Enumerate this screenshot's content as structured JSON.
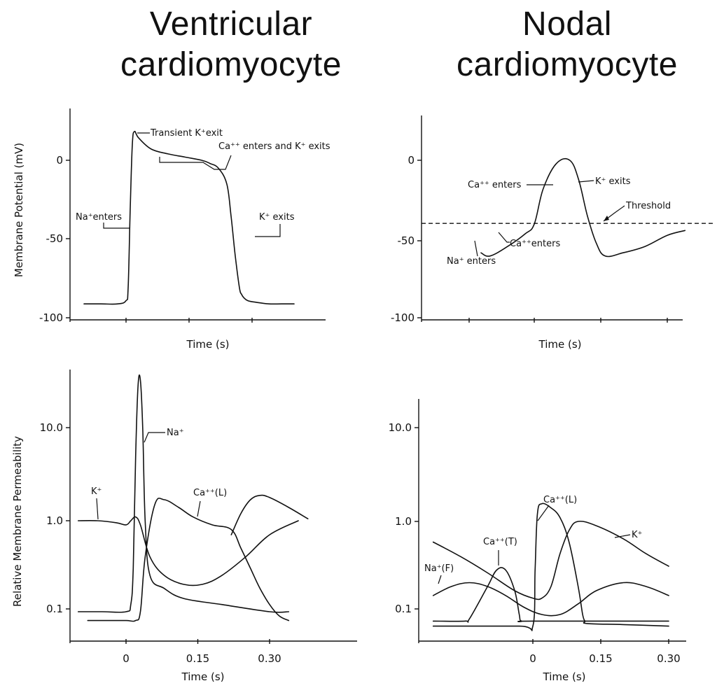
{
  "headers": {
    "left": "Ventricular cardiomyocyte",
    "right": "Nodal cardiomyocyte"
  },
  "chart_data": [
    {
      "id": "ventricular-potential",
      "type": "line",
      "ylabel": "Membrane Potential (mV)",
      "xlabel": "Time (s)",
      "xlim": [
        -0.12,
        0.4
      ],
      "ylim": [
        -100,
        35
      ],
      "yticks": [
        0,
        -50,
        -100
      ],
      "yticklabels": [
        "0",
        "-50",
        "-100"
      ],
      "xticks": [
        0,
        0.15,
        0.3
      ],
      "xticklabels": [],
      "series": [
        {
          "x": [
            -0.1,
            -0.06,
            -0.02,
            0.0,
            0.005,
            0.01,
            0.015,
            0.02,
            0.03,
            0.06,
            0.1,
            0.14,
            0.18,
            0.2,
            0.22,
            0.24,
            0.25,
            0.26,
            0.27,
            0.275,
            0.28,
            0.29,
            0.31,
            0.34,
            0.37,
            0.4
          ],
          "y": [
            -90,
            -90,
            -90,
            -88,
            -80,
            -30,
            10,
            18,
            14,
            7,
            4,
            2,
            0,
            -2,
            -5,
            -15,
            -35,
            -60,
            -80,
            -84,
            -86,
            -88,
            -89,
            -90,
            -90,
            -90
          ]
        }
      ],
      "annotations": [
        {
          "text": "Transient K⁺exit"
        },
        {
          "text": "Ca⁺⁺ enters and K⁺ exits"
        },
        {
          "text": "Na⁺enters"
        },
        {
          "text": "K⁺ exits"
        }
      ]
    },
    {
      "id": "nodal-potential",
      "type": "line",
      "ylabel": "",
      "xlabel": "Time (s)",
      "xlim": [
        -0.12,
        0.4
      ],
      "ylim": [
        -100,
        35
      ],
      "yticks": [
        0,
        -50,
        -100
      ],
      "yticklabels": [
        "0",
        "-50",
        "-100"
      ],
      "xticks": [
        0,
        0.15,
        0.3
      ],
      "xticklabels": [],
      "threshold": -40,
      "series": [
        {
          "x": [
            -0.12,
            -0.1,
            -0.06,
            -0.02,
            0.0,
            0.02,
            0.05,
            0.08,
            0.1,
            0.12,
            0.14,
            0.16,
            0.2,
            0.25,
            0.3,
            0.34
          ],
          "y": [
            -58,
            -60,
            -54,
            -46,
            -40,
            -18,
            -2,
            0,
            -12,
            -35,
            -52,
            -60,
            -58,
            -54,
            -47,
            -44
          ]
        }
      ],
      "annotations": [
        {
          "text": "Ca⁺⁺ enters"
        },
        {
          "text": "K⁺ exits"
        },
        {
          "text": "Threshold"
        },
        {
          "text": "Ca⁺⁺enters"
        },
        {
          "text": "Na⁺ enters"
        }
      ]
    },
    {
      "id": "ventricular-permeability",
      "type": "line",
      "yscale": "log",
      "ylabel": "Relative Membrane Permeability",
      "xlabel": "Time (s)",
      "xlim": [
        -0.12,
        0.4
      ],
      "ylim": [
        0.04,
        60
      ],
      "yticks": [
        10,
        1,
        0.1
      ],
      "yticklabels": [
        "10.0",
        "1.0",
        "0.1"
      ],
      "xticks": [
        0,
        0.15,
        0.3
      ],
      "xticklabels": [
        "0",
        "0.15",
        "0.30"
      ],
      "series": [
        {
          "name": "K⁺",
          "x": [
            -0.1,
            -0.06,
            -0.02,
            0.0,
            0.01,
            0.02,
            0.03,
            0.05,
            0.08,
            0.12,
            0.16,
            0.2,
            0.25,
            0.3,
            0.36
          ],
          "y": [
            1.0,
            1.0,
            0.95,
            0.9,
            1.0,
            1.1,
            0.9,
            0.4,
            0.25,
            0.2,
            0.2,
            0.25,
            0.4,
            0.7,
            1.0
          ]
        },
        {
          "name": "Na⁺",
          "x": [
            -0.1,
            -0.05,
            0.0,
            0.01,
            0.015,
            0.02,
            0.025,
            0.03,
            0.035,
            0.04,
            0.05,
            0.08,
            0.12,
            0.2,
            0.3,
            0.34
          ],
          "y": [
            0.1,
            0.1,
            0.1,
            0.12,
            0.3,
            5,
            30,
            35,
            10,
            1,
            0.25,
            0.18,
            0.14,
            0.12,
            0.1,
            0.1
          ]
        },
        {
          "name": "Ca⁺⁺(L)",
          "x": [
            -0.08,
            -0.04,
            0.0,
            0.02,
            0.03,
            0.04,
            0.06,
            0.08,
            0.11,
            0.14,
            0.18,
            0.22,
            0.24,
            0.26,
            0.28,
            0.3,
            0.32,
            0.34
          ],
          "y": [
            0.08,
            0.08,
            0.08,
            0.08,
            0.1,
            0.4,
            1.5,
            1.7,
            1.4,
            1.1,
            0.9,
            0.8,
            0.5,
            0.3,
            0.18,
            0.12,
            0.09,
            0.08
          ]
        },
        {
          "name": "",
          "x": [
            0.22,
            0.24,
            0.26,
            0.28,
            0.3,
            0.34,
            0.38
          ],
          "y": [
            0.7,
            1.2,
            1.7,
            1.9,
            1.8,
            1.4,
            1.05
          ]
        }
      ],
      "labels": [
        "K⁺",
        "Na⁺",
        "Ca⁺⁺(L)"
      ]
    },
    {
      "id": "nodal-permeability",
      "type": "line",
      "yscale": "log",
      "ylabel": "",
      "xlabel": "Time (s)",
      "xlim": [
        -0.22,
        0.3
      ],
      "ylim": [
        0.04,
        60
      ],
      "yticks": [
        10,
        1,
        0.1
      ],
      "yticklabels": [
        "10.0",
        "1.0",
        "0.1"
      ],
      "xticks": [
        0,
        0.15,
        0.3
      ],
      "xticklabels": [
        "0",
        "0.15",
        "0.30"
      ],
      "series": [
        {
          "name": "K⁺",
          "x": [
            -0.22,
            -0.16,
            -0.1,
            -0.04,
            0.0,
            0.02,
            0.04,
            0.06,
            0.08,
            0.1,
            0.14,
            0.2,
            0.25,
            0.3
          ],
          "y": [
            0.6,
            0.42,
            0.28,
            0.18,
            0.15,
            0.15,
            0.2,
            0.45,
            0.8,
            1.0,
            0.9,
            0.65,
            0.45,
            0.33
          ]
        },
        {
          "name": "Na⁺(F)",
          "x": [
            -0.22,
            -0.18,
            -0.14,
            -0.1,
            -0.06,
            -0.02,
            0.02,
            0.06,
            0.1,
            0.14,
            0.2,
            0.25,
            0.3
          ],
          "y": [
            0.16,
            0.2,
            0.22,
            0.2,
            0.16,
            0.12,
            0.1,
            0.1,
            0.13,
            0.18,
            0.22,
            0.2,
            0.16
          ]
        },
        {
          "name": "Ca⁺⁺(T)",
          "x": [
            -0.22,
            -0.15,
            -0.14,
            -0.1,
            -0.08,
            -0.06,
            -0.04,
            -0.03,
            -0.025,
            0.0,
            0.3
          ],
          "y": [
            0.085,
            0.085,
            0.09,
            0.2,
            0.3,
            0.3,
            0.18,
            0.1,
            0.085,
            0.085,
            0.085
          ]
        },
        {
          "name": "Ca⁺⁺(L)",
          "x": [
            -0.22,
            -0.03,
            0.0,
            0.005,
            0.01,
            0.02,
            0.04,
            0.06,
            0.08,
            0.1,
            0.11,
            0.115,
            0.12,
            0.2,
            0.3
          ],
          "y": [
            0.075,
            0.075,
            0.075,
            0.3,
            1.2,
            1.55,
            1.4,
            1.1,
            0.6,
            0.2,
            0.1,
            0.085,
            0.08,
            0.078,
            0.075
          ]
        }
      ],
      "labels": [
        "K⁺",
        "Ca⁺⁺(T)",
        "Ca⁺⁺(L)",
        "Na⁺(F)"
      ]
    }
  ]
}
